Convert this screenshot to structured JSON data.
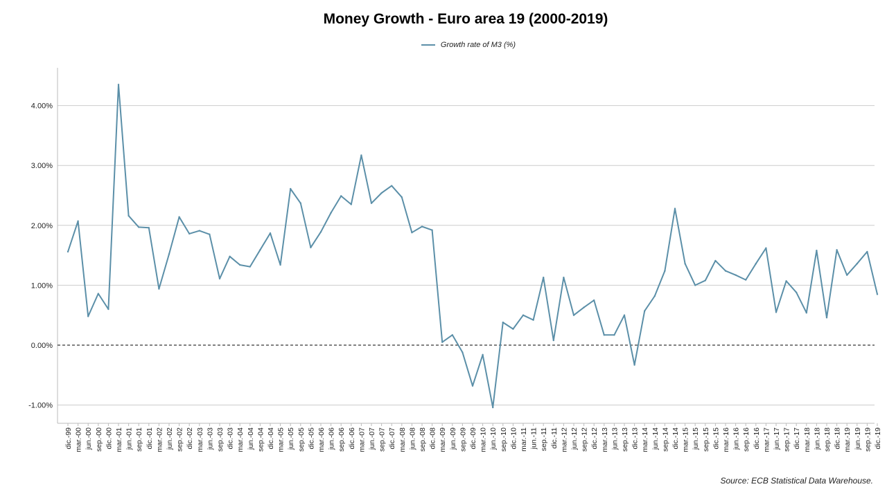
{
  "chart_data": {
    "type": "line",
    "title": "Money Growth - Euro area 19 (2000-2019)",
    "xlabel": "",
    "ylabel": "",
    "ylim": [
      -1.25,
      4.6
    ],
    "yticks": [
      -1.0,
      0.0,
      1.0,
      2.0,
      3.0,
      4.0
    ],
    "ytick_labels": [
      "-1.00%",
      "0.00%",
      "1.00%",
      "2.00%",
      "3.00%",
      "4.00%"
    ],
    "categories": [
      "dic.-99",
      "mar.-00",
      "jun.-00",
      "sep.-00",
      "dic.-00",
      "mar.-01",
      "jun.-01",
      "sep.-01",
      "dic.-01",
      "mar.-02",
      "jun.-02",
      "sep.-02",
      "dic.-02",
      "mar.-03",
      "jun.-03",
      "sep.-03",
      "dic.-03",
      "mar.-04",
      "jun.-04",
      "sep.-04",
      "dic.-04",
      "mar.-05",
      "jun.-05",
      "sep.-05",
      "dic.-05",
      "mar.-06",
      "jun.-06",
      "sep.-06",
      "dic.-06",
      "mar.-07",
      "jun.-07",
      "sep.-07",
      "dic.-07",
      "mar.-08",
      "jun.-08",
      "sep.-08",
      "dic.-08",
      "mar.-09",
      "jun.-09",
      "sep.-09",
      "dic.-09",
      "mar.-10",
      "jun.-10",
      "sep.-10",
      "dic.-10",
      "mar.-11",
      "jun.-11",
      "sep.-11",
      "dic.-11",
      "mar.-12",
      "jun.-12",
      "sep.-12",
      "dic.-12",
      "mar.-13",
      "jun.-13",
      "sep.-13",
      "dic.-13",
      "mar.-14",
      "jun.-14",
      "sep.-14",
      "dic.-14",
      "mar.-15",
      "jun.-15",
      "sep.-15",
      "dic.-15",
      "mar.-16",
      "jun.-16",
      "sep.-16",
      "dic.-16",
      "mar.-17",
      "jun.-17",
      "sep.-17",
      "dic.-17",
      "mar.-18",
      "jun.-18",
      "sep.-18",
      "dic.-18",
      "mar.-19",
      "jun.-19",
      "sep.-19",
      "dic.-19"
    ],
    "series": [
      {
        "name": "Growth rate of M3 (%)",
        "color": "#5b8fa8",
        "values": [
          1.56,
          2.07,
          0.48,
          0.86,
          0.6,
          4.35,
          2.16,
          1.97,
          1.96,
          0.94,
          1.52,
          2.14,
          1.86,
          1.91,
          1.85,
          1.11,
          1.48,
          1.34,
          1.31,
          1.59,
          1.87,
          1.34,
          2.61,
          2.37,
          1.63,
          1.89,
          2.21,
          2.49,
          2.35,
          3.17,
          2.37,
          2.54,
          2.66,
          2.47,
          1.88,
          1.98,
          1.92,
          0.05,
          0.17,
          -0.12,
          -0.68,
          -0.16,
          -1.04,
          0.38,
          0.27,
          0.5,
          0.42,
          1.13,
          0.08,
          1.13,
          0.5,
          0.63,
          0.75,
          0.17,
          0.17,
          0.5,
          -0.33,
          0.57,
          0.82,
          1.24,
          2.28,
          1.36,
          1.0,
          1.08,
          1.41,
          1.24,
          1.17,
          1.09,
          1.36,
          1.62,
          0.55,
          1.07,
          0.88,
          0.54,
          1.58,
          0.46,
          1.59,
          1.17,
          1.36,
          1.56,
          0.85
        ]
      }
    ],
    "reference_line": {
      "y": 0.0,
      "style": "dashed"
    },
    "grid": true,
    "legend_position": "top-center",
    "source": "Source: ECB Statistical Data Warehouse."
  }
}
